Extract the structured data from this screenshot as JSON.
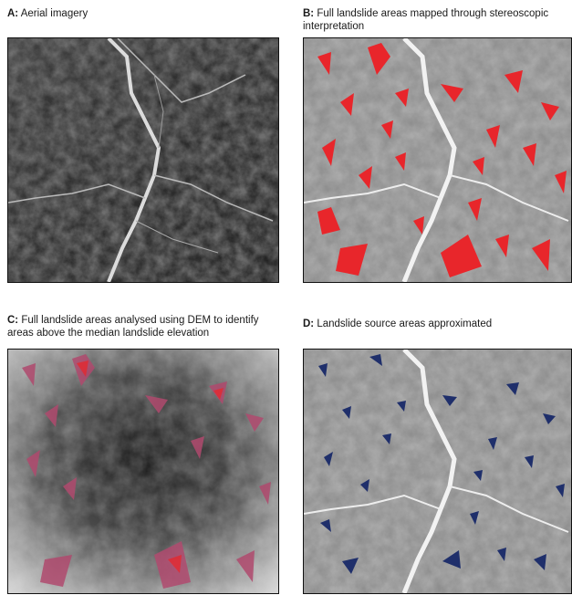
{
  "panels": [
    {
      "letter": "A:",
      "caption": "Aerial imagery"
    },
    {
      "letter": "B:",
      "caption": "Full landslide areas mapped through stereoscopic interpretation"
    },
    {
      "letter": "C:",
      "caption": "Full landslide areas analysed using DEM to identify areas above the median landslide elevation"
    },
    {
      "letter": "D:",
      "caption": "Landslide source areas approximated"
    }
  ],
  "colors": {
    "landslide_mapped": "#e8262b",
    "landslide_dem": "#b04a6e",
    "source_area": "#1f2f6b"
  }
}
